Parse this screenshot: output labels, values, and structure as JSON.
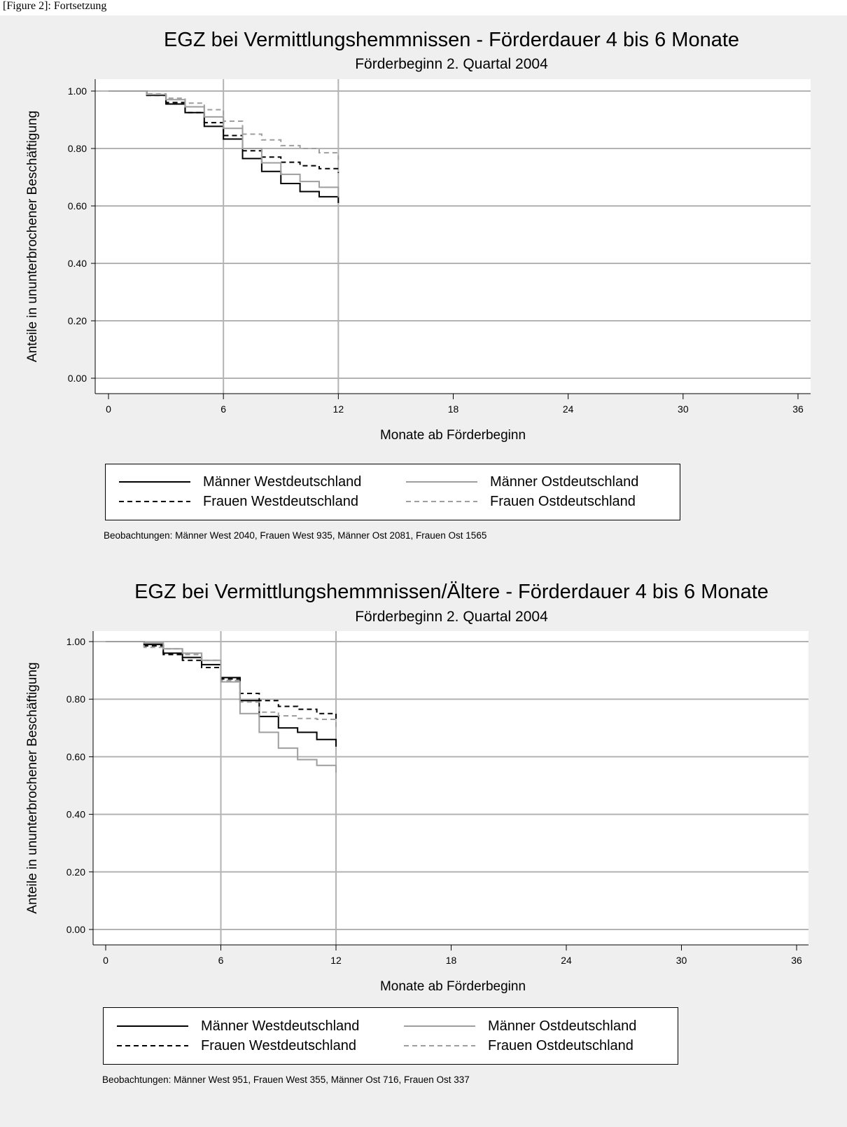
{
  "page": {
    "caption": "[Figure 2]: Fortsetzung"
  },
  "colors": {
    "background": "#efefef",
    "plot_region": "#ffffff",
    "grid": "#b3b3b3",
    "west": "#000000",
    "ost": "#9e9e9e"
  },
  "series_styles": [
    {
      "color": "#000000",
      "dash": "none",
      "icon": "solid-line"
    },
    {
      "color": "#000000",
      "dash": "7,5",
      "icon": "dashed-line"
    },
    {
      "color": "#9e9e9e",
      "dash": "none",
      "icon": "solid-line"
    },
    {
      "color": "#9e9e9e",
      "dash": "7,5",
      "icon": "dashed-line"
    }
  ],
  "chart_data": [
    {
      "type": "line",
      "step": true,
      "title": "EGZ bei Vermittlungshemmnissen - Förderdauer 4 bis 6 Monate",
      "subtitle": "Förderbeginn 2. Quartal 2004",
      "xlabel": "Monate ab Förderbeginn",
      "ylabel": "Anteile in ununterbrochener Beschäftigung",
      "xlim": [
        0,
        36
      ],
      "ylim": [
        0,
        1
      ],
      "xticks": [
        0,
        6,
        12,
        18,
        24,
        30,
        36
      ],
      "yticks": [
        0.0,
        0.2,
        0.4,
        0.6,
        0.8,
        1.0
      ],
      "ytick_labels": [
        "0.00",
        "0.20",
        "0.40",
        "0.60",
        "0.80",
        "1.00"
      ],
      "xgrid": [
        6,
        12
      ],
      "ygrid": true,
      "legend": {
        "position": "bottom",
        "columns": 2
      },
      "x": [
        0,
        1,
        2,
        3,
        4,
        5,
        6,
        7,
        8,
        9,
        10,
        11,
        12
      ],
      "series": [
        {
          "name": "Männer Westdeutschland",
          "values": [
            1.0,
            1.0,
            0.985,
            0.955,
            0.925,
            0.877,
            0.833,
            0.765,
            0.72,
            0.678,
            0.65,
            0.632,
            0.61
          ]
        },
        {
          "name": "Frauen Westdeutschland",
          "values": [
            1.0,
            1.0,
            0.985,
            0.96,
            0.925,
            0.89,
            0.845,
            0.792,
            0.77,
            0.752,
            0.74,
            0.73,
            0.715
          ]
        },
        {
          "name": "Männer Ostdeutschland",
          "values": [
            1.0,
            1.0,
            0.988,
            0.97,
            0.945,
            0.91,
            0.87,
            0.8,
            0.75,
            0.71,
            0.685,
            0.665,
            0.63
          ]
        },
        {
          "name": "Frauen Ostdeutschland",
          "values": [
            1.0,
            1.0,
            0.99,
            0.975,
            0.958,
            0.935,
            0.895,
            0.85,
            0.83,
            0.81,
            0.8,
            0.785,
            0.76
          ]
        }
      ],
      "legend_labels": [
        "Männer Westdeutschland",
        "Frauen Westdeutschland",
        "Männer Ostdeutschland",
        "Frauen Ostdeutschland"
      ],
      "note": "Beobachtungen: Männer West 2040, Frauen West 935, Männer Ost 2081, Frauen Ost 1565"
    },
    {
      "type": "line",
      "step": true,
      "title": "EGZ bei Vermittlungshemmnissen/Ältere - Förderdauer 4 bis 6 Monate",
      "subtitle": "Förderbeginn 2. Quartal 2004",
      "xlabel": "Monate ab Förderbeginn",
      "ylabel": "Anteile in ununterbrochener Beschäftigung",
      "xlim": [
        0,
        36
      ],
      "ylim": [
        0,
        1
      ],
      "xticks": [
        0,
        6,
        12,
        18,
        24,
        30,
        36
      ],
      "yticks": [
        0.0,
        0.2,
        0.4,
        0.6,
        0.8,
        1.0
      ],
      "ytick_labels": [
        "0.00",
        "0.20",
        "0.40",
        "0.60",
        "0.80",
        "1.00"
      ],
      "xgrid": [
        6,
        12
      ],
      "ygrid": true,
      "legend": {
        "position": "bottom",
        "columns": 2
      },
      "x": [
        0,
        1,
        2,
        3,
        4,
        5,
        6,
        7,
        8,
        9,
        10,
        11,
        12
      ],
      "series": [
        {
          "name": "Männer Westdeutschland",
          "values": [
            1.0,
            1.0,
            0.99,
            0.96,
            0.945,
            0.92,
            0.875,
            0.795,
            0.74,
            0.7,
            0.685,
            0.66,
            0.635
          ]
        },
        {
          "name": "Frauen Westdeutschland",
          "values": [
            1.0,
            1.0,
            0.985,
            0.955,
            0.935,
            0.91,
            0.87,
            0.82,
            0.795,
            0.775,
            0.765,
            0.75,
            0.72
          ]
        },
        {
          "name": "Männer Ostdeutschland",
          "values": [
            1.0,
            1.0,
            0.995,
            0.975,
            0.96,
            0.935,
            0.86,
            0.75,
            0.685,
            0.63,
            0.59,
            0.57,
            0.545
          ]
        },
        {
          "name": "Frauen Ostdeutschland",
          "values": [
            1.0,
            1.0,
            0.98,
            0.975,
            0.955,
            0.935,
            0.865,
            0.79,
            0.755,
            0.742,
            0.733,
            0.73,
            0.7
          ]
        }
      ],
      "legend_labels": [
        "Männer Westdeutschland",
        "Frauen Westdeutschland",
        "Männer Ostdeutschland",
        "Frauen Ostdeutschland"
      ],
      "note": "Beobachtungen: Männer West 951, Frauen West 355, Männer Ost 716, Frauen Ost 337"
    }
  ]
}
